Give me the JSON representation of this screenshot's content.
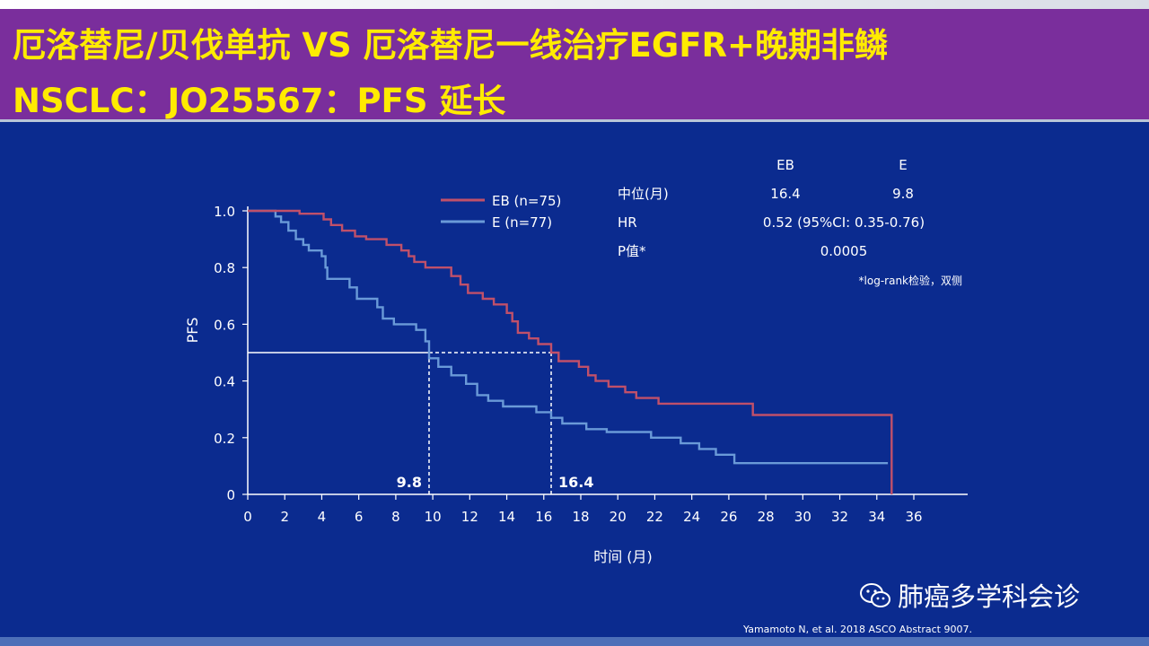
{
  "title": {
    "line1": "厄洛替尼/贝伐单抗 VS 厄洛替尼一线治疗EGFR+晚期非鳞",
    "line2": "NSCLC：JO25567：PFS 延长"
  },
  "colors": {
    "eb": "#c0506a",
    "e": "#6a9ad8",
    "title_text": "#ffeb00",
    "title_bg": "#7a2e9c",
    "background": "#0b2b8f"
  },
  "stats_table": {
    "col_headers": [
      "EB",
      "E"
    ],
    "rows": [
      {
        "label": "中位(月)",
        "eb": "16.4",
        "e": "9.8"
      },
      {
        "label": "HR",
        "value": "0.52 (95%CI: 0.35-0.76)"
      },
      {
        "label": "P值*",
        "value": "0.0005"
      }
    ],
    "footnote": "*log-rank检验，双侧"
  },
  "chart_data": {
    "type": "line",
    "xlabel": "时间 (月)",
    "ylabel": "PFS",
    "xlim": [
      0,
      36
    ],
    "ylim": [
      0,
      1.0
    ],
    "x_ticks": [
      "0",
      "2",
      "4",
      "6",
      "8",
      "10",
      "12",
      "14",
      "16",
      "18",
      "20",
      "22",
      "24",
      "26",
      "28",
      "30",
      "32",
      "34",
      "36"
    ],
    "y_ticks": [
      "0",
      "0.2",
      "0.4",
      "0.6",
      "0.8",
      "1.0"
    ],
    "grid": false,
    "legend_position": "top-right",
    "median_reference_y": 0.5,
    "medians": [
      {
        "x": 9.8,
        "label": "9.8"
      },
      {
        "x": 16.4,
        "label": "16.4"
      }
    ],
    "series": [
      {
        "name": "EB (n=75)",
        "color": "#c0506a",
        "points": [
          [
            0,
            1.0
          ],
          [
            2.8,
            1.0
          ],
          [
            2.8,
            0.99
          ],
          [
            4.1,
            0.99
          ],
          [
            4.1,
            0.97
          ],
          [
            4.5,
            0.97
          ],
          [
            4.5,
            0.95
          ],
          [
            5.1,
            0.95
          ],
          [
            5.1,
            0.93
          ],
          [
            5.8,
            0.93
          ],
          [
            5.8,
            0.91
          ],
          [
            6.4,
            0.91
          ],
          [
            6.4,
            0.9
          ],
          [
            7.5,
            0.9
          ],
          [
            7.5,
            0.88
          ],
          [
            8.3,
            0.88
          ],
          [
            8.3,
            0.86
          ],
          [
            8.7,
            0.86
          ],
          [
            8.7,
            0.84
          ],
          [
            9.0,
            0.84
          ],
          [
            9.0,
            0.82
          ],
          [
            9.6,
            0.82
          ],
          [
            9.6,
            0.8
          ],
          [
            11.0,
            0.8
          ],
          [
            11.0,
            0.77
          ],
          [
            11.5,
            0.77
          ],
          [
            11.5,
            0.74
          ],
          [
            11.9,
            0.74
          ],
          [
            11.9,
            0.71
          ],
          [
            12.7,
            0.71
          ],
          [
            12.7,
            0.69
          ],
          [
            13.3,
            0.69
          ],
          [
            13.3,
            0.67
          ],
          [
            14.0,
            0.67
          ],
          [
            14.0,
            0.64
          ],
          [
            14.3,
            0.64
          ],
          [
            14.3,
            0.61
          ],
          [
            14.6,
            0.61
          ],
          [
            14.6,
            0.57
          ],
          [
            15.2,
            0.57
          ],
          [
            15.2,
            0.55
          ],
          [
            15.7,
            0.55
          ],
          [
            15.7,
            0.53
          ],
          [
            16.4,
            0.53
          ],
          [
            16.4,
            0.5
          ],
          [
            16.8,
            0.5
          ],
          [
            16.8,
            0.47
          ],
          [
            17.9,
            0.47
          ],
          [
            17.9,
            0.45
          ],
          [
            18.4,
            0.45
          ],
          [
            18.4,
            0.42
          ],
          [
            18.8,
            0.42
          ],
          [
            18.8,
            0.4
          ],
          [
            19.5,
            0.4
          ],
          [
            19.5,
            0.38
          ],
          [
            20.4,
            0.38
          ],
          [
            20.4,
            0.36
          ],
          [
            21.0,
            0.36
          ],
          [
            21.0,
            0.34
          ],
          [
            22.2,
            0.34
          ],
          [
            22.2,
            0.32
          ],
          [
            27.3,
            0.32
          ],
          [
            27.3,
            0.28
          ],
          [
            34.8,
            0.28
          ],
          [
            34.8,
            0.0
          ]
        ]
      },
      {
        "name": "E (n=77)",
        "color": "#6a9ad8",
        "points": [
          [
            0,
            1.0
          ],
          [
            1.5,
            1.0
          ],
          [
            1.5,
            0.98
          ],
          [
            1.8,
            0.98
          ],
          [
            1.8,
            0.96
          ],
          [
            2.2,
            0.96
          ],
          [
            2.2,
            0.93
          ],
          [
            2.6,
            0.93
          ],
          [
            2.6,
            0.9
          ],
          [
            3.0,
            0.9
          ],
          [
            3.0,
            0.88
          ],
          [
            3.3,
            0.88
          ],
          [
            3.3,
            0.86
          ],
          [
            4.0,
            0.86
          ],
          [
            4.0,
            0.84
          ],
          [
            4.2,
            0.84
          ],
          [
            4.2,
            0.8
          ],
          [
            4.3,
            0.8
          ],
          [
            4.3,
            0.76
          ],
          [
            5.5,
            0.76
          ],
          [
            5.5,
            0.73
          ],
          [
            5.9,
            0.73
          ],
          [
            5.9,
            0.69
          ],
          [
            7.0,
            0.69
          ],
          [
            7.0,
            0.66
          ],
          [
            7.3,
            0.66
          ],
          [
            7.3,
            0.62
          ],
          [
            7.9,
            0.62
          ],
          [
            7.9,
            0.6
          ],
          [
            9.1,
            0.6
          ],
          [
            9.1,
            0.58
          ],
          [
            9.6,
            0.58
          ],
          [
            9.6,
            0.54
          ],
          [
            9.8,
            0.54
          ],
          [
            9.8,
            0.48
          ],
          [
            10.3,
            0.48
          ],
          [
            10.3,
            0.45
          ],
          [
            11.0,
            0.45
          ],
          [
            11.0,
            0.42
          ],
          [
            11.8,
            0.42
          ],
          [
            11.8,
            0.39
          ],
          [
            12.4,
            0.39
          ],
          [
            12.4,
            0.35
          ],
          [
            13.0,
            0.35
          ],
          [
            13.0,
            0.33
          ],
          [
            13.8,
            0.33
          ],
          [
            13.8,
            0.31
          ],
          [
            15.6,
            0.31
          ],
          [
            15.6,
            0.29
          ],
          [
            16.4,
            0.29
          ],
          [
            16.4,
            0.27
          ],
          [
            17.0,
            0.27
          ],
          [
            17.0,
            0.25
          ],
          [
            18.3,
            0.25
          ],
          [
            18.3,
            0.23
          ],
          [
            19.4,
            0.23
          ],
          [
            19.4,
            0.22
          ],
          [
            21.8,
            0.22
          ],
          [
            21.8,
            0.2
          ],
          [
            23.4,
            0.2
          ],
          [
            23.4,
            0.18
          ],
          [
            24.4,
            0.18
          ],
          [
            24.4,
            0.16
          ],
          [
            25.3,
            0.16
          ],
          [
            25.3,
            0.14
          ],
          [
            26.3,
            0.14
          ],
          [
            26.3,
            0.11
          ],
          [
            34.6,
            0.11
          ]
        ]
      }
    ]
  },
  "watermark": {
    "text": "肺癌多学科会诊",
    "icon": "wechat-icon"
  },
  "citation": "Yamamoto N, et al. 2018 ASCO Abstract 9007."
}
